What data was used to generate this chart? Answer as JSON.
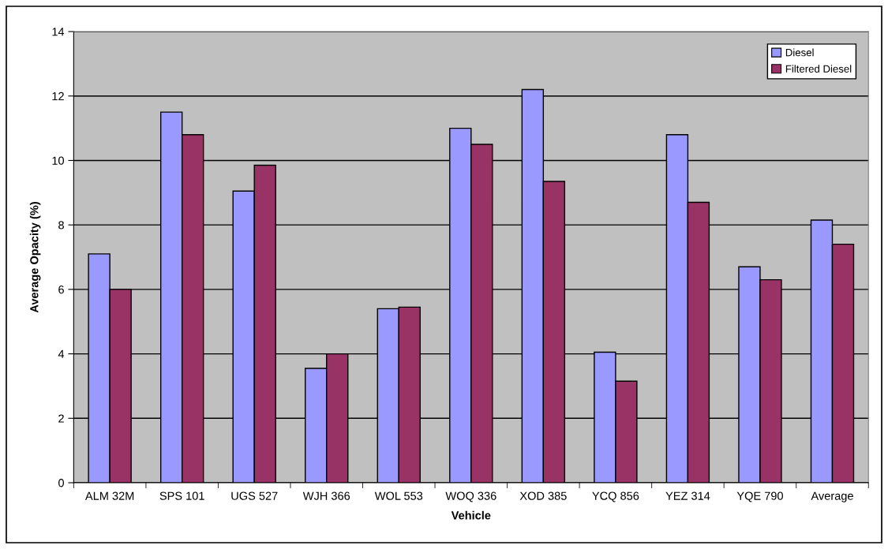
{
  "chart_data": {
    "type": "bar",
    "xlabel": "Vehicle",
    "ylabel": "Average Opacity (%)",
    "categories": [
      "ALM 32M",
      "SPS 101",
      "UGS 527",
      "WJH 366",
      "WOL 553",
      "WOQ 336",
      "XOD 385",
      "YCQ 856",
      "YEZ 314",
      "YQE 790",
      "Average"
    ],
    "series": [
      {
        "name": "Diesel",
        "color": "#9999ff",
        "values": [
          7.1,
          11.5,
          9.05,
          3.55,
          5.4,
          11.0,
          12.2,
          4.05,
          10.8,
          6.7,
          8.15
        ]
      },
      {
        "name": "Filtered Diesel",
        "color": "#993366",
        "values": [
          6.0,
          10.8,
          9.85,
          4.0,
          5.45,
          10.5,
          9.35,
          3.15,
          8.7,
          6.3,
          7.4
        ]
      }
    ],
    "ylim": [
      0,
      14
    ],
    "yticks": [
      0,
      2,
      4,
      6,
      8,
      10,
      12,
      14
    ],
    "grid": "y",
    "legend": "top right"
  }
}
